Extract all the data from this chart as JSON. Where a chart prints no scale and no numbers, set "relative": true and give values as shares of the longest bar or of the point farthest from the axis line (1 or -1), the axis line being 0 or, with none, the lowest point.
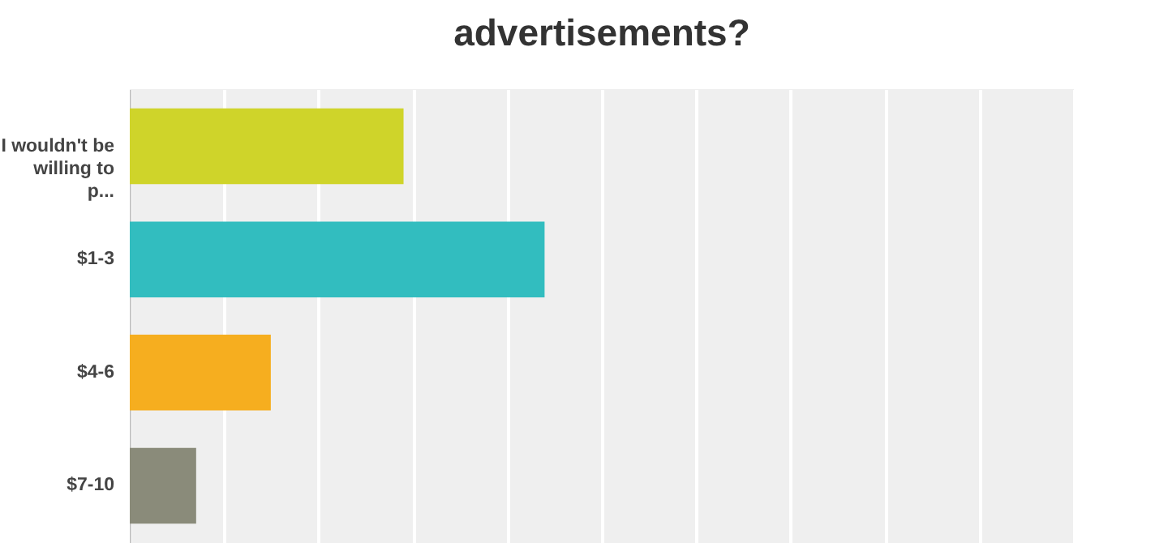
{
  "chart_data": {
    "type": "bar",
    "orientation": "horizontal",
    "relative": true,
    "title": "advertisements?",
    "categories": [
      "I wouldn't be willing to p...",
      "$1-3",
      "$4-6",
      "$7-10"
    ],
    "values": [
      0.66,
      1,
      0.34,
      0.16
    ],
    "colors": [
      "#cfd42a",
      "#32bdbf",
      "#f6ae1f",
      "#8a8b7a"
    ],
    "grid": "x",
    "legend": false
  }
}
